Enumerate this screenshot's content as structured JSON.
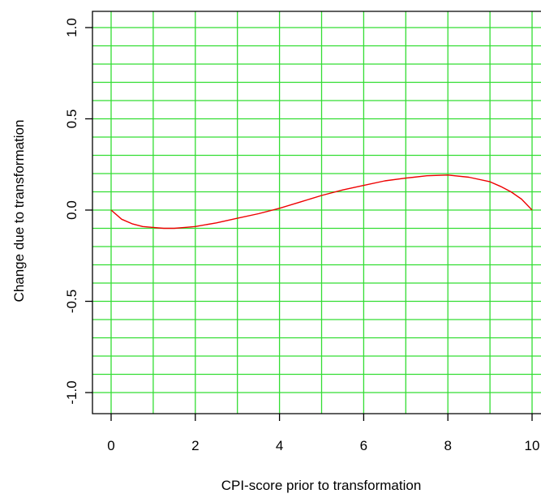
{
  "chart_data": {
    "type": "line",
    "xlabel": "CPI-score prior to transformation",
    "ylabel": "Change due to transformation",
    "xlim": [
      0,
      10
    ],
    "ylim": [
      -1.0,
      1.0
    ],
    "x_ticks": [
      0,
      2,
      4,
      6,
      8,
      10
    ],
    "x_tick_labels": [
      "0",
      "2",
      "4",
      "6",
      "8",
      "10"
    ],
    "y_ticks": [
      -1.0,
      -0.5,
      0.0,
      0.5,
      1.0
    ],
    "y_tick_labels": [
      "-1.0",
      "-0.5",
      "0.0",
      "0.5",
      "1.0"
    ],
    "grid": true,
    "grid_x_step": 1,
    "grid_y_step": 0.1,
    "colors": {
      "grid": "#33dd33",
      "line": "#ee0000",
      "axis": "#000000"
    },
    "series": [
      {
        "x": [
          0,
          0.25,
          0.5,
          0.75,
          1,
          1.25,
          1.5,
          1.75,
          2,
          2.5,
          3,
          3.5,
          4,
          4.5,
          5,
          5.5,
          6,
          6.5,
          7,
          7.5,
          8,
          8.5,
          9,
          9.25,
          9.5,
          9.75,
          10
        ],
        "y": [
          0.0,
          -0.05,
          -0.075,
          -0.09,
          -0.095,
          -0.1,
          -0.1,
          -0.095,
          -0.09,
          -0.07,
          -0.045,
          -0.02,
          0.01,
          0.045,
          0.08,
          0.11,
          0.135,
          0.16,
          0.175,
          0.188,
          0.192,
          0.18,
          0.155,
          0.13,
          0.1,
          0.06,
          0.0
        ]
      }
    ]
  }
}
